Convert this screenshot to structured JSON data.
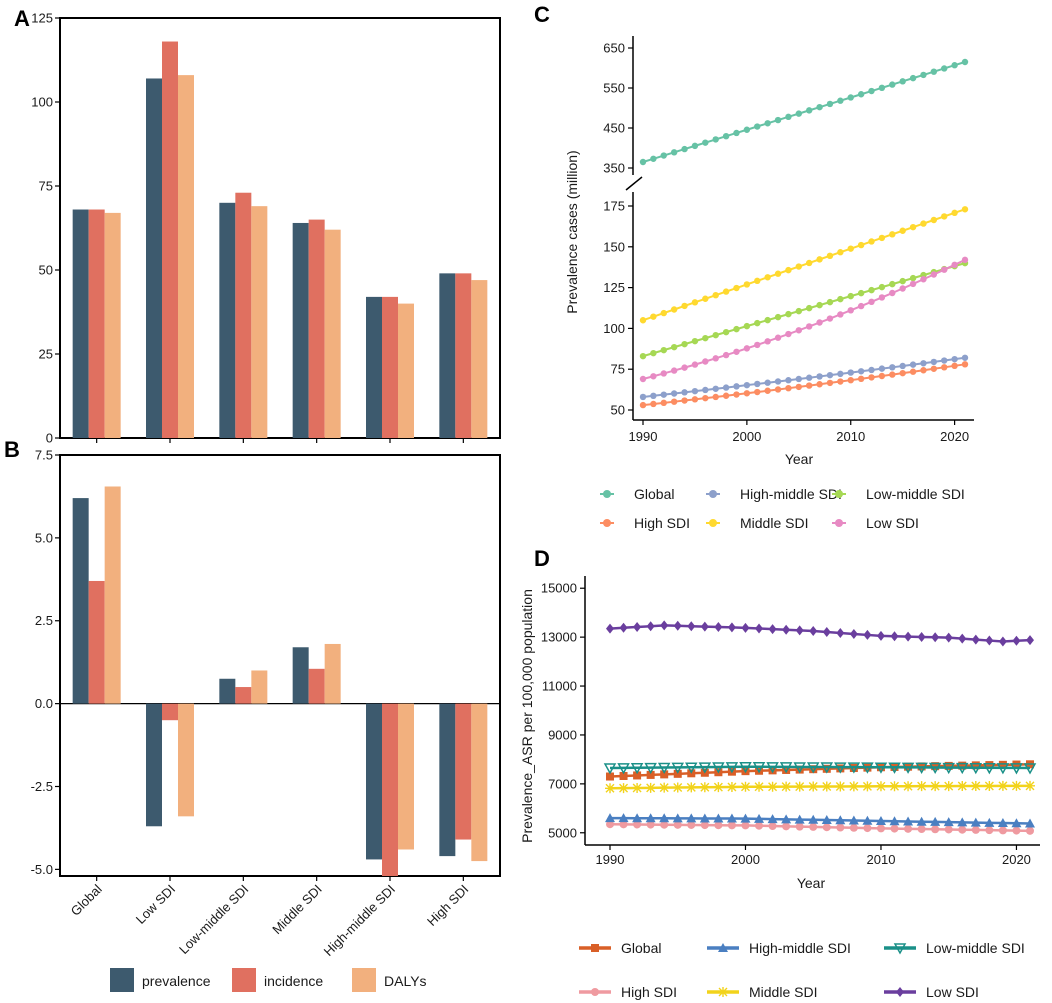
{
  "panels": {
    "a": "A",
    "b": "B",
    "c": "C",
    "d": "D"
  },
  "colors": {
    "prevalence": "#3d5a6e",
    "incidence": "#e07060",
    "dalys": "#f2b07e",
    "Global": "#66c2a5",
    "High SDI": "#fc8d62",
    "High-middle SDI": "#8da0cb",
    "Middle SDI": "#ffd92f",
    "Low-middle SDI": "#a6d854",
    "Low SDI": "#e78ac3",
    "d_Global": "#d95f27",
    "d_High SDI": "#ef9aa0",
    "d_High-middle SDI": "#4a7fc1",
    "d_Middle SDI": "#f2d31b",
    "d_Low-middle SDI": "#1a9088",
    "d_Low SDI": "#6a3e9e"
  },
  "chart_data": [
    {
      "id": "A",
      "type": "bar",
      "categories": [
        "Global",
        "Low SDI",
        "Low-middle SDI",
        "Middle SDI",
        "High-middle SDI",
        "High SDI"
      ],
      "series": [
        {
          "name": "prevalence",
          "values": [
            68,
            107,
            70,
            64,
            42,
            49
          ]
        },
        {
          "name": "incidence",
          "values": [
            68,
            118,
            73,
            65,
            42,
            49
          ]
        },
        {
          "name": "DALYs",
          "values": [
            67,
            108,
            69,
            62,
            40,
            47
          ]
        }
      ],
      "ylim": [
        0,
        125
      ],
      "yticks": [
        0,
        25,
        50,
        75,
        100,
        125
      ],
      "ytick_labels": [
        "0",
        "25",
        "50",
        "75",
        "100",
        "125"
      ]
    },
    {
      "id": "B",
      "type": "bar",
      "categories": [
        "Global",
        "Low SDI",
        "Low-middle SDI",
        "Middle SDI",
        "High-middle SDI",
        "High SDI"
      ],
      "series": [
        {
          "name": "prevalence",
          "values": [
            6.2,
            -3.7,
            0.75,
            1.7,
            -4.7,
            -4.6
          ]
        },
        {
          "name": "incidence",
          "values": [
            3.7,
            -0.5,
            0.5,
            1.05,
            -5.2,
            -4.1
          ]
        },
        {
          "name": "DALYs",
          "values": [
            6.55,
            -3.4,
            1.0,
            1.8,
            -4.4,
            -4.75
          ]
        }
      ],
      "ylim": [
        -5.2,
        7.5
      ],
      "yticks": [
        -5,
        -2.5,
        0,
        2.5,
        5,
        7.5
      ],
      "ytick_labels": [
        "-5.0",
        "-2.5",
        "0.0",
        "2.5",
        "5.0",
        "7.5"
      ],
      "legend": [
        "prevalence",
        "incidence",
        "DALYs"
      ]
    },
    {
      "id": "C",
      "type": "line",
      "ylabel": "Prevalence cases (million)",
      "xlabel": "Year",
      "xlim": [
        1990,
        2021
      ],
      "xticks": [
        1990,
        2000,
        2010,
        2020
      ],
      "ylim_lower": [
        50,
        175
      ],
      "yticks_lower": [
        50,
        75,
        100,
        125,
        150,
        175
      ],
      "ylim_upper": [
        350,
        650
      ],
      "yticks_upper": [
        350,
        450,
        550,
        650
      ],
      "series": [
        {
          "name": "Global",
          "start": 365,
          "end": 615,
          "curve": 0
        },
        {
          "name": "High SDI",
          "start": 53,
          "end": 78,
          "curve": 0.15
        },
        {
          "name": "High-middle SDI",
          "start": 58,
          "end": 82,
          "curve": 0.1
        },
        {
          "name": "Middle SDI",
          "start": 105,
          "end": 173,
          "curve": 0
        },
        {
          "name": "Low-middle SDI",
          "start": 83,
          "end": 140,
          "curve": 0
        },
        {
          "name": "Low SDI",
          "start": 69,
          "end": 142,
          "curve": 0.3
        }
      ],
      "legend": [
        "Global",
        "High-middle SDI",
        "Low-middle SDI",
        "High SDI",
        "Middle SDI",
        "Low SDI"
      ]
    },
    {
      "id": "D",
      "type": "line",
      "ylabel": "Prevalence_ASR per 100,000 population",
      "xlabel": "Year",
      "xlim": [
        1990,
        2021
      ],
      "xticks": [
        1990,
        2000,
        2010,
        2020
      ],
      "ylim": [
        4500,
        15500
      ],
      "yticks": [
        5000,
        7000,
        9000,
        11000,
        13000,
        15000
      ],
      "series": [
        {
          "name": "Global",
          "keys": [
            [
              1990,
              7300
            ],
            [
              2000,
              7520
            ],
            [
              2010,
              7680
            ],
            [
              2021,
              7800
            ]
          ]
        },
        {
          "name": "High SDI",
          "keys": [
            [
              1990,
              5350
            ],
            [
              2000,
              5300
            ],
            [
              2010,
              5180
            ],
            [
              2021,
              5080
            ]
          ]
        },
        {
          "name": "High-middle SDI",
          "keys": [
            [
              1990,
              5600
            ],
            [
              2000,
              5580
            ],
            [
              2010,
              5480
            ],
            [
              2021,
              5380
            ]
          ]
        },
        {
          "name": "Middle SDI",
          "keys": [
            [
              1990,
              6820
            ],
            [
              2000,
              6880
            ],
            [
              2010,
              6900
            ],
            [
              2021,
              6920
            ]
          ]
        },
        {
          "name": "Low-middle SDI",
          "keys": [
            [
              1990,
              7650
            ],
            [
              2000,
              7700
            ],
            [
              2010,
              7680
            ],
            [
              2021,
              7650
            ]
          ]
        },
        {
          "name": "Low SDI",
          "keys": [
            [
              1990,
              13350
            ],
            [
              1994,
              13480
            ],
            [
              2000,
              13380
            ],
            [
              2005,
              13250
            ],
            [
              2010,
              13050
            ],
            [
              2015,
              12980
            ],
            [
              2019,
              12820
            ],
            [
              2021,
              12880
            ]
          ]
        }
      ],
      "legend": [
        "Global",
        "High-middle SDI",
        "Low-middle SDI",
        "High SDI",
        "Middle SDI",
        "Low SDI"
      ]
    }
  ]
}
